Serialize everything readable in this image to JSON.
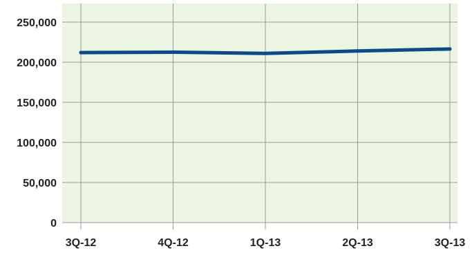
{
  "chart_data": {
    "type": "line",
    "title": "",
    "xlabel": "",
    "ylabel": "",
    "categories": [
      "3Q-12",
      "4Q-12",
      "1Q-13",
      "2Q-13",
      "3Q-13"
    ],
    "series": [
      {
        "values": [
          212000,
          212500,
          211000,
          214000,
          216500
        ]
      }
    ],
    "ylim": [
      0,
      250000
    ],
    "yticks": [
      0,
      50000,
      100000,
      150000,
      200000,
      250000
    ],
    "ytick_labels": [
      "0",
      "50,000",
      "100,000",
      "150,000",
      "200,000",
      "250,000"
    ],
    "grid": true,
    "legend": "none",
    "colors": {
      "plot_background": "#ecf5e1",
      "grid": "#9a9a9a",
      "line": "#0b4a8c",
      "text": "#222222"
    }
  }
}
